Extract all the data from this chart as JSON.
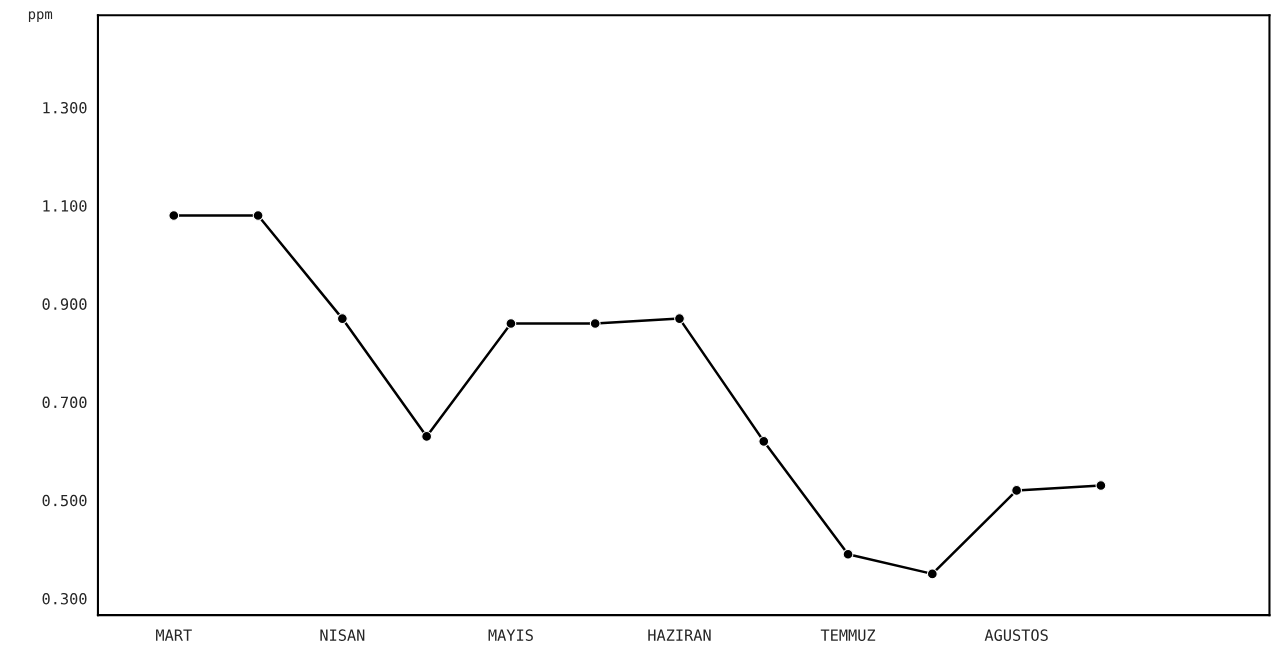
{
  "chart_data": {
    "type": "line",
    "ylabel": "ppm",
    "categories": [
      "MART",
      null,
      "NISAN",
      null,
      "MAYIS",
      null,
      "HAZIRAN",
      null,
      "TEMMUZ",
      null,
      "AGUSTOS",
      null
    ],
    "series": [
      {
        "color": "#000000",
        "values": [
          1.08,
          1.08,
          0.87,
          0.63,
          0.86,
          0.86,
          0.87,
          0.62,
          0.39,
          0.35,
          0.52,
          0.53
        ]
      }
    ],
    "ylim": [
      0.266,
      1.488
    ],
    "yticks": [
      {
        "value": 0.3,
        "label": "0.300"
      },
      {
        "value": 0.5,
        "label": "0.500"
      },
      {
        "value": 0.7,
        "label": "0.700"
      },
      {
        "value": 0.9,
        "label": "0.900"
      },
      {
        "value": 1.1,
        "label": "1.100"
      },
      {
        "value": 1.3,
        "label": "1.300"
      }
    ],
    "grid": false,
    "legend": false,
    "marker": "circle",
    "line_style": "solid"
  }
}
